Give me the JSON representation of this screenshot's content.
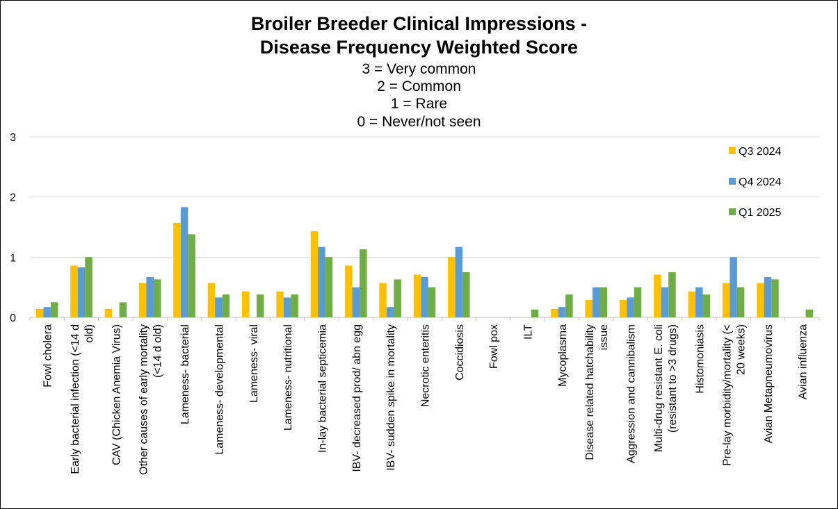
{
  "chart_data": {
    "type": "bar",
    "title": [
      "Broiler Breeder Clinical Impressions -",
      "Disease Frequency Weighted Score"
    ],
    "subtitle": [
      "3 = Very common",
      "2 = Common",
      "1 = Rare",
      "0 = Never/not seen"
    ],
    "xlabel": "",
    "ylabel": "",
    "ylim": [
      0,
      3
    ],
    "yticks": [
      "0",
      "1",
      "2",
      "3"
    ],
    "grid": true,
    "legend_position": "right",
    "categories": [
      [
        "Fowl cholera"
      ],
      [
        "Early bacterial infection (<14 d",
        "old)"
      ],
      [
        "CAV (Chicken Anemia Virus)"
      ],
      [
        "Other causes of early mortality",
        "(<14 d old)"
      ],
      [
        "Lameness- bacterial"
      ],
      [
        "Lameness- developmental"
      ],
      [
        "Lameness- viral"
      ],
      [
        "Lameness- nutritional"
      ],
      [
        "In-lay bacterial septicemia"
      ],
      [
        "IBV- decreased prod/ abn egg"
      ],
      [
        "IBV- sudden spike in mortality"
      ],
      [
        "Necrotic enteritis"
      ],
      [
        "Coccidiosis"
      ],
      [
        "Fowl pox"
      ],
      [
        "ILT"
      ],
      [
        "Mycoplasma"
      ],
      [
        "Disease related hatchability",
        "issue"
      ],
      [
        "Aggression and cannibalism"
      ],
      [
        "Multi-drug resistant E. coli",
        "(resistant to >3 drugs)"
      ],
      [
        "Histomoniasis"
      ],
      [
        "Pre-lay morbidity/mortality (<",
        "20 weeks)"
      ],
      [
        "Avian Metapneumovirus"
      ],
      [
        "Avian influenza"
      ]
    ],
    "series": [
      {
        "name": "Q3 2024",
        "color": "#FFC000",
        "values": [
          0.14,
          0.86,
          0.14,
          0.57,
          1.57,
          0.57,
          0.43,
          0.43,
          1.43,
          0.86,
          0.57,
          0.71,
          1.0,
          0,
          0,
          0.14,
          0.29,
          0.29,
          0.71,
          0.43,
          0.57,
          0.57,
          0
        ]
      },
      {
        "name": "Q4 2024",
        "color": "#5B9BD5",
        "values": [
          0.17,
          0.83,
          0,
          0.67,
          1.83,
          0.33,
          0,
          0.33,
          1.17,
          0.5,
          0.17,
          0.67,
          1.17,
          0,
          0,
          0.17,
          0.5,
          0.33,
          0.5,
          0.5,
          1.0,
          0.67,
          0
        ]
      },
      {
        "name": "Q1 2025",
        "color": "#70AD47",
        "values": [
          0.25,
          1.0,
          0.25,
          0.63,
          1.38,
          0.38,
          0.38,
          0.38,
          1.0,
          1.13,
          0.63,
          0.5,
          0.75,
          0,
          0.13,
          0.38,
          0.5,
          0.5,
          0.75,
          0.38,
          0.5,
          0.63,
          0.13
        ]
      }
    ]
  }
}
